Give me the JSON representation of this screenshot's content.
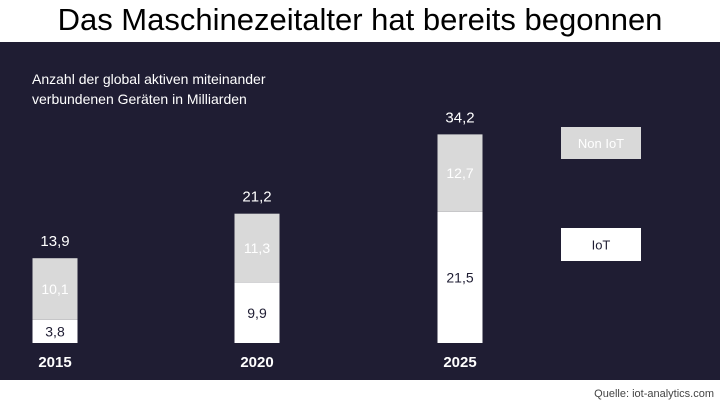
{
  "title": "Das Maschinezeitalter hat bereits begonnen",
  "subtitle_lines": [
    "Anzahl der global aktiven miteinander",
    "verbundenen Geräten in Milliarden"
  ],
  "source": "Quelle: iot-analytics.com",
  "colors": {
    "background": "#1f1d33",
    "iot": "#ffffff",
    "non_iot": "#d9d9d9",
    "label_on_iot": "#1f1d33",
    "label_on_non_iot": "#ffffff",
    "axis_text": "#ffffff"
  },
  "chart_data": {
    "type": "bar",
    "stacked": true,
    "categories": [
      "2015",
      "2020",
      "2025"
    ],
    "series": [
      {
        "name": "IoT",
        "values": [
          3.8,
          9.9,
          21.5
        ],
        "labels": [
          "3,8",
          "9,9",
          "21,5"
        ]
      },
      {
        "name": "Non IoT",
        "values": [
          10.1,
          11.3,
          12.7
        ],
        "labels": [
          "10,1",
          "11,3",
          "12,7"
        ]
      }
    ],
    "totals": [
      13.9,
      21.2,
      34.2
    ],
    "total_labels": [
      "13,9",
      "21,2",
      "34,2"
    ],
    "legend_position": "right",
    "legend_order": [
      "Non IoT",
      "IoT"
    ],
    "grid": false
  }
}
